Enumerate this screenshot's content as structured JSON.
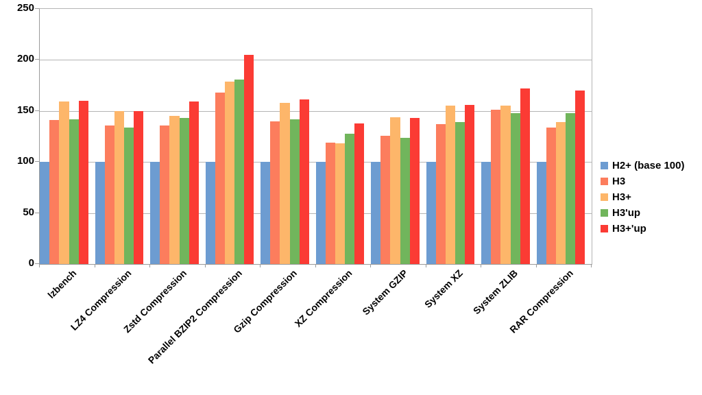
{
  "chart_data": {
    "type": "bar",
    "title": "",
    "xlabel": "",
    "ylabel": "",
    "categories": [
      "lzbench",
      "LZ4 Compression",
      "Zstd Compression",
      "Parallel BZIP2 Compression",
      "Gzip Compression",
      "XZ Compression",
      "System GZIP",
      "System XZ",
      "System ZLIB",
      "RAR Compression"
    ],
    "series": [
      {
        "name": "H2+ (base 100)",
        "color": "#6D9CD1",
        "values": [
          100,
          100,
          100,
          100,
          100,
          100,
          100,
          100,
          100,
          100
        ]
      },
      {
        "name": "H3",
        "color": "#FC7D5D",
        "values": [
          141,
          136,
          136,
          168,
          140,
          119,
          126,
          137,
          151,
          134
        ]
      },
      {
        "name": "H3+",
        "color": "#FDB66A",
        "values": [
          159,
          150,
          145,
          179,
          158,
          118,
          144,
          155,
          155,
          139
        ]
      },
      {
        "name": "H3'up",
        "color": "#71B55C",
        "values": [
          142,
          134,
          143,
          181,
          142,
          128,
          124,
          139,
          148,
          148
        ]
      },
      {
        "name": "H3+'up",
        "color": "#FB3B34",
        "values": [
          160,
          150,
          159,
          205,
          161,
          138,
          143,
          156,
          172,
          170
        ]
      }
    ],
    "ylim": [
      0,
      250
    ],
    "yticks": [
      0,
      50,
      100,
      150,
      200,
      250
    ],
    "grid": true,
    "legend_position": "right",
    "colors": {
      "gridline": "#b4b4b4",
      "axis": "#9a9a9a",
      "text": "#000000",
      "background": "#ffffff"
    }
  }
}
